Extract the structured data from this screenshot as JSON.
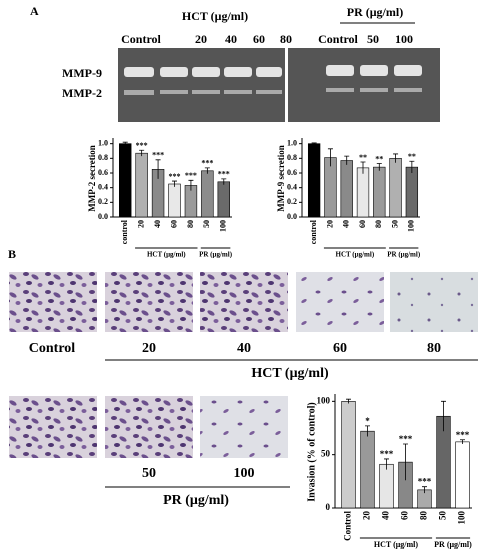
{
  "panel_a_label": "A",
  "panel_b_label": "B",
  "gel": {
    "left_group": "HCT (μg/ml)",
    "right_group": "PR (μg/ml)",
    "left_lanes": [
      "Control",
      "20",
      "40",
      "60",
      "80"
    ],
    "right_lanes": [
      "Control",
      "50",
      "100"
    ],
    "bands": [
      "MMP-9",
      "MMP-2"
    ]
  },
  "images": {
    "row1_labels": [
      "Control",
      "20",
      "40",
      "60",
      "80"
    ],
    "row1_group": "HCT (μg/ml)",
    "row2_labels": [
      "50",
      "100"
    ],
    "row2_group": "PR (μg/ml)"
  },
  "chart_data": [
    {
      "type": "bar",
      "y_label": "MMP-2 secretion",
      "categories": [
        "control",
        "20",
        "40",
        "60",
        "80",
        "50",
        "100"
      ],
      "values": [
        1.0,
        0.87,
        0.65,
        0.45,
        0.43,
        0.63,
        0.48
      ],
      "errors": [
        0.02,
        0.04,
        0.13,
        0.04,
        0.07,
        0.04,
        0.04
      ],
      "annotations": [
        null,
        "***",
        "***",
        "***",
        "***",
        "***",
        "***"
      ],
      "colors": [
        "#000000",
        "#b0b0b0",
        "#8a8a8a",
        "#e8e8e8",
        "#9a9a9a",
        "#8c8c8c",
        "#6a6a6a"
      ],
      "groups": [
        "HCT (μg/ml)",
        "PR (μg/ml)"
      ],
      "ylim": [
        0,
        1.05
      ],
      "yticks": [
        {
          "value": 0,
          "label": "0.0"
        },
        {
          "value": 0.2,
          "label": "0.2"
        },
        {
          "value": 0.4,
          "label": "0.4"
        },
        {
          "value": 0.6,
          "label": "0.6"
        },
        {
          "value": 0.8,
          "label": "0.8"
        },
        {
          "value": 1.0,
          "label": "1.0"
        }
      ]
    },
    {
      "type": "bar",
      "y_label": "MMP-9 secretion",
      "categories": [
        "control",
        "20",
        "40",
        "60",
        "80",
        "50",
        "100"
      ],
      "values": [
        1.0,
        0.81,
        0.77,
        0.67,
        0.68,
        0.8,
        0.68
      ],
      "errors": [
        0.01,
        0.12,
        0.06,
        0.08,
        0.05,
        0.06,
        0.08
      ],
      "annotations": [
        null,
        null,
        null,
        "**",
        "**",
        null,
        "**"
      ],
      "colors": [
        "#000000",
        "#9a9a9a",
        "#8a8a8a",
        "#e8e8e8",
        "#9a9a9a",
        "#b0b0b0",
        "#6a6a6a"
      ],
      "groups": [
        "HCT (μg/ml)",
        "PR (μg/ml)"
      ],
      "ylim": [
        0,
        1.05
      ],
      "yticks": [
        {
          "value": 0,
          "label": "0.0"
        },
        {
          "value": 0.2,
          "label": "0.2"
        },
        {
          "value": 0.4,
          "label": "0.4"
        },
        {
          "value": 0.6,
          "label": "0.6"
        },
        {
          "value": 0.8,
          "label": "0.8"
        },
        {
          "value": 1.0,
          "label": "1.0"
        }
      ]
    },
    {
      "type": "bar",
      "y_label": "Invasion (% of control)",
      "categories": [
        "Control",
        "20",
        "40",
        "60",
        "80",
        "50",
        "100"
      ],
      "values": [
        100,
        72,
        41,
        43,
        17,
        86,
        62
      ],
      "errors": [
        2,
        5,
        5,
        17,
        3,
        14,
        2
      ],
      "annotations": [
        null,
        "*",
        "***",
        "***",
        "***",
        null,
        "***"
      ],
      "colors": [
        "#cccccc",
        "#999999",
        "#e6e6e6",
        "#888888",
        "#aaaaaa",
        "#666666",
        "#ffffff"
      ],
      "groups": [
        "HCT (μg/ml)",
        "PR (μg/ml)"
      ],
      "ylim": [
        0,
        105
      ],
      "yticks": [
        0,
        50,
        100
      ]
    }
  ]
}
